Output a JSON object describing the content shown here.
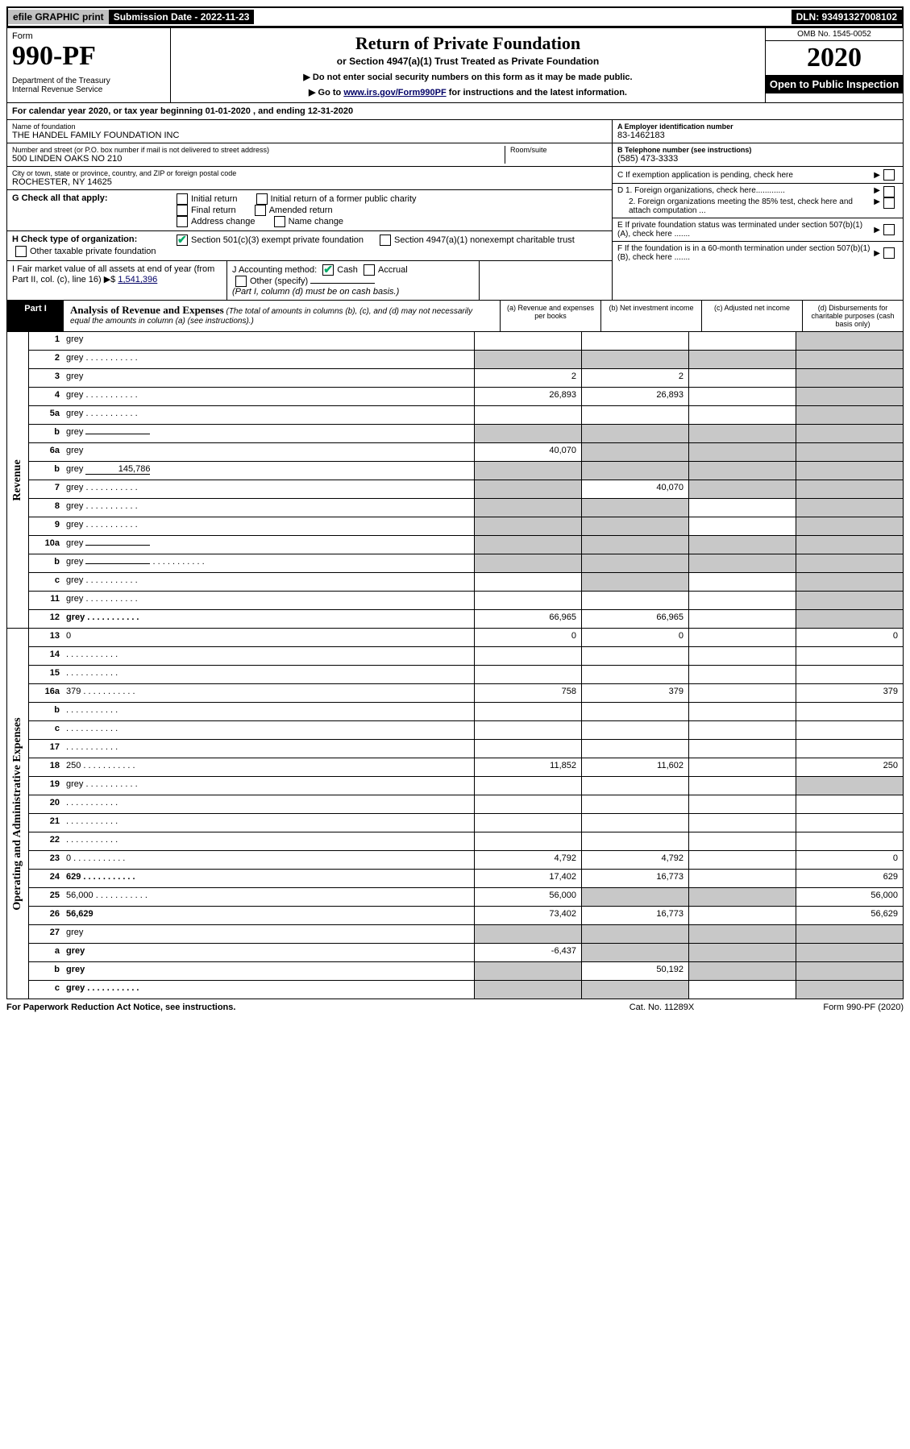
{
  "top": {
    "efile": "efile GRAPHIC print",
    "submission": "Submission Date - 2022-11-23",
    "dln": "DLN: 93491327008102"
  },
  "header": {
    "form_label": "Form",
    "form_no": "990-PF",
    "dept": "Department of the Treasury\nInternal Revenue Service",
    "title": "Return of Private Foundation",
    "subtitle": "or Section 4947(a)(1) Trust Treated as Private Foundation",
    "instr1": "▶ Do not enter social security numbers on this form as it may be made public.",
    "instr2_prefix": "▶ Go to ",
    "instr2_link": "www.irs.gov/Form990PF",
    "instr2_suffix": " for instructions and the latest information.",
    "omb": "OMB No. 1545-0052",
    "year": "2020",
    "open": "Open to Public Inspection"
  },
  "cal_year": "For calendar year 2020, or tax year beginning 01-01-2020                          , and ending 12-31-2020",
  "name_block": {
    "hint": "Name of foundation",
    "val": "THE HANDEL FAMILY FOUNDATION INC",
    "addr_hint": "Number and street (or P.O. box number if mail is not delivered to street address)",
    "room_hint": "Room/suite",
    "addr_val": "500 LINDEN OAKS NO 210",
    "city_hint": "City or town, state or province, country, and ZIP or foreign postal code",
    "city_val": "ROCHESTER, NY  14625"
  },
  "right_block": {
    "a_hint": "A Employer identification number",
    "a_val": "83-1462183",
    "b_hint": "B Telephone number (see instructions)",
    "b_val": "(585) 473-3333",
    "c_hint": "C If exemption application is pending, check here",
    "d1": "D 1. Foreign organizations, check here.............",
    "d2": "2. Foreign organizations meeting the 85% test, check here and attach computation ...",
    "e": "E  If private foundation status was terminated under section 507(b)(1)(A), check here .......",
    "f": "F  If the foundation is in a 60-month termination under section 507(b)(1)(B), check here .......",
    "arrow": "▶"
  },
  "g_row": {
    "lbl": "G Check all that apply:",
    "opts": [
      "Initial return",
      "Final return",
      "Address change",
      "Initial return of a former public charity",
      "Amended return",
      "Name change"
    ]
  },
  "h_row": {
    "lbl": "H Check type of organization:",
    "o1": "Section 501(c)(3) exempt private foundation",
    "o2": "Section 4947(a)(1) nonexempt charitable trust",
    "o3": "Other taxable private foundation"
  },
  "ijf": {
    "i_lbl": "I Fair market value of all assets at end of year (from Part II, col. (c), line 16) ▶$",
    "i_val": "1,541,396",
    "j_lbl": "J Accounting method:",
    "j_cash": "Cash",
    "j_accrual": "Accrual",
    "j_other": "Other (specify)",
    "j_note": "(Part I, column (d) must be on cash basis.)"
  },
  "part1": {
    "label": "Part I",
    "title": "Analysis of Revenue and Expenses",
    "subtitle": "(The total of amounts in columns (b), (c), and (d) may not necessarily equal the amounts in column (a) (see instructions).)",
    "cols": {
      "a": "(a)   Revenue and expenses per books",
      "b": "(b)   Net investment income",
      "c": "(c)   Adjusted net income",
      "d": "(d)   Disbursements for charitable purposes (cash basis only)"
    }
  },
  "sections": {
    "revenue": "Revenue",
    "expenses": "Operating and Administrative Expenses"
  },
  "rows_rev": [
    {
      "n": "1",
      "d": "grey",
      "a": "",
      "b": "",
      "c": ""
    },
    {
      "n": "2",
      "d": "grey",
      "dots": true,
      "a": "grey",
      "b": "grey",
      "c": "grey"
    },
    {
      "n": "3",
      "d": "grey",
      "a": "2",
      "b": "2",
      "c": ""
    },
    {
      "n": "4",
      "d": "grey",
      "dots": true,
      "a": "26,893",
      "b": "26,893",
      "c": ""
    },
    {
      "n": "5a",
      "d": "grey",
      "dots": true,
      "a": "",
      "b": "",
      "c": ""
    },
    {
      "n": "b",
      "d": "grey",
      "mini": "",
      "a": "grey",
      "b": "grey",
      "c": "grey"
    },
    {
      "n": "6a",
      "d": "grey",
      "a": "40,070",
      "b": "grey",
      "c": "grey"
    },
    {
      "n": "b",
      "d": "grey",
      "mini": "145,786",
      "a": "grey",
      "b": "grey",
      "c": "grey"
    },
    {
      "n": "7",
      "d": "grey",
      "dots": true,
      "a": "grey",
      "b": "40,070",
      "c": "grey"
    },
    {
      "n": "8",
      "d": "grey",
      "dots": true,
      "a": "grey",
      "b": "grey",
      "c": ""
    },
    {
      "n": "9",
      "d": "grey",
      "dots": true,
      "a": "grey",
      "b": "grey",
      "c": ""
    },
    {
      "n": "10a",
      "d": "grey",
      "mini": "",
      "a": "grey",
      "b": "grey",
      "c": "grey"
    },
    {
      "n": "b",
      "d": "grey",
      "dots": true,
      "mini": "",
      "a": "grey",
      "b": "grey",
      "c": "grey"
    },
    {
      "n": "c",
      "d": "grey",
      "dots": true,
      "a": "",
      "b": "grey",
      "c": ""
    },
    {
      "n": "11",
      "d": "grey",
      "dots": true,
      "a": "",
      "b": "",
      "c": ""
    },
    {
      "n": "12",
      "d": "grey",
      "dots": true,
      "bold": true,
      "a": "66,965",
      "b": "66,965",
      "c": ""
    }
  ],
  "rows_exp": [
    {
      "n": "13",
      "d": "0",
      "a": "0",
      "b": "0",
      "c": ""
    },
    {
      "n": "14",
      "d": "",
      "dots": true,
      "a": "",
      "b": "",
      "c": ""
    },
    {
      "n": "15",
      "d": "",
      "dots": true,
      "a": "",
      "b": "",
      "c": ""
    },
    {
      "n": "16a",
      "d": "379",
      "dots": true,
      "a": "758",
      "b": "379",
      "c": ""
    },
    {
      "n": "b",
      "d": "",
      "dots": true,
      "a": "",
      "b": "",
      "c": ""
    },
    {
      "n": "c",
      "d": "",
      "dots": true,
      "a": "",
      "b": "",
      "c": ""
    },
    {
      "n": "17",
      "d": "",
      "dots": true,
      "a": "",
      "b": "",
      "c": ""
    },
    {
      "n": "18",
      "d": "250",
      "dots": true,
      "a": "11,852",
      "b": "11,602",
      "c": ""
    },
    {
      "n": "19",
      "d": "grey",
      "dots": true,
      "a": "",
      "b": "",
      "c": ""
    },
    {
      "n": "20",
      "d": "",
      "dots": true,
      "a": "",
      "b": "",
      "c": ""
    },
    {
      "n": "21",
      "d": "",
      "dots": true,
      "a": "",
      "b": "",
      "c": ""
    },
    {
      "n": "22",
      "d": "",
      "dots": true,
      "a": "",
      "b": "",
      "c": ""
    },
    {
      "n": "23",
      "d": "0",
      "dots": true,
      "a": "4,792",
      "b": "4,792",
      "c": ""
    },
    {
      "n": "24",
      "d": "629",
      "dots": true,
      "bold": true,
      "a": "17,402",
      "b": "16,773",
      "c": ""
    },
    {
      "n": "25",
      "d": "56,000",
      "dots": true,
      "a": "56,000",
      "b": "grey",
      "c": "grey"
    },
    {
      "n": "26",
      "d": "56,629",
      "bold": true,
      "a": "73,402",
      "b": "16,773",
      "c": ""
    },
    {
      "n": "27",
      "d": "grey",
      "a": "grey",
      "b": "grey",
      "c": "grey"
    },
    {
      "n": "a",
      "d": "grey",
      "bold": true,
      "a": "-6,437",
      "b": "grey",
      "c": "grey"
    },
    {
      "n": "b",
      "d": "grey",
      "bold": true,
      "a": "grey",
      "b": "50,192",
      "c": "grey"
    },
    {
      "n": "c",
      "d": "grey",
      "dots": true,
      "bold": true,
      "a": "grey",
      "b": "grey",
      "c": ""
    }
  ],
  "footer": {
    "l": "For Paperwork Reduction Act Notice, see instructions.",
    "c": "Cat. No. 11289X",
    "r": "Form 990-PF (2020)"
  }
}
